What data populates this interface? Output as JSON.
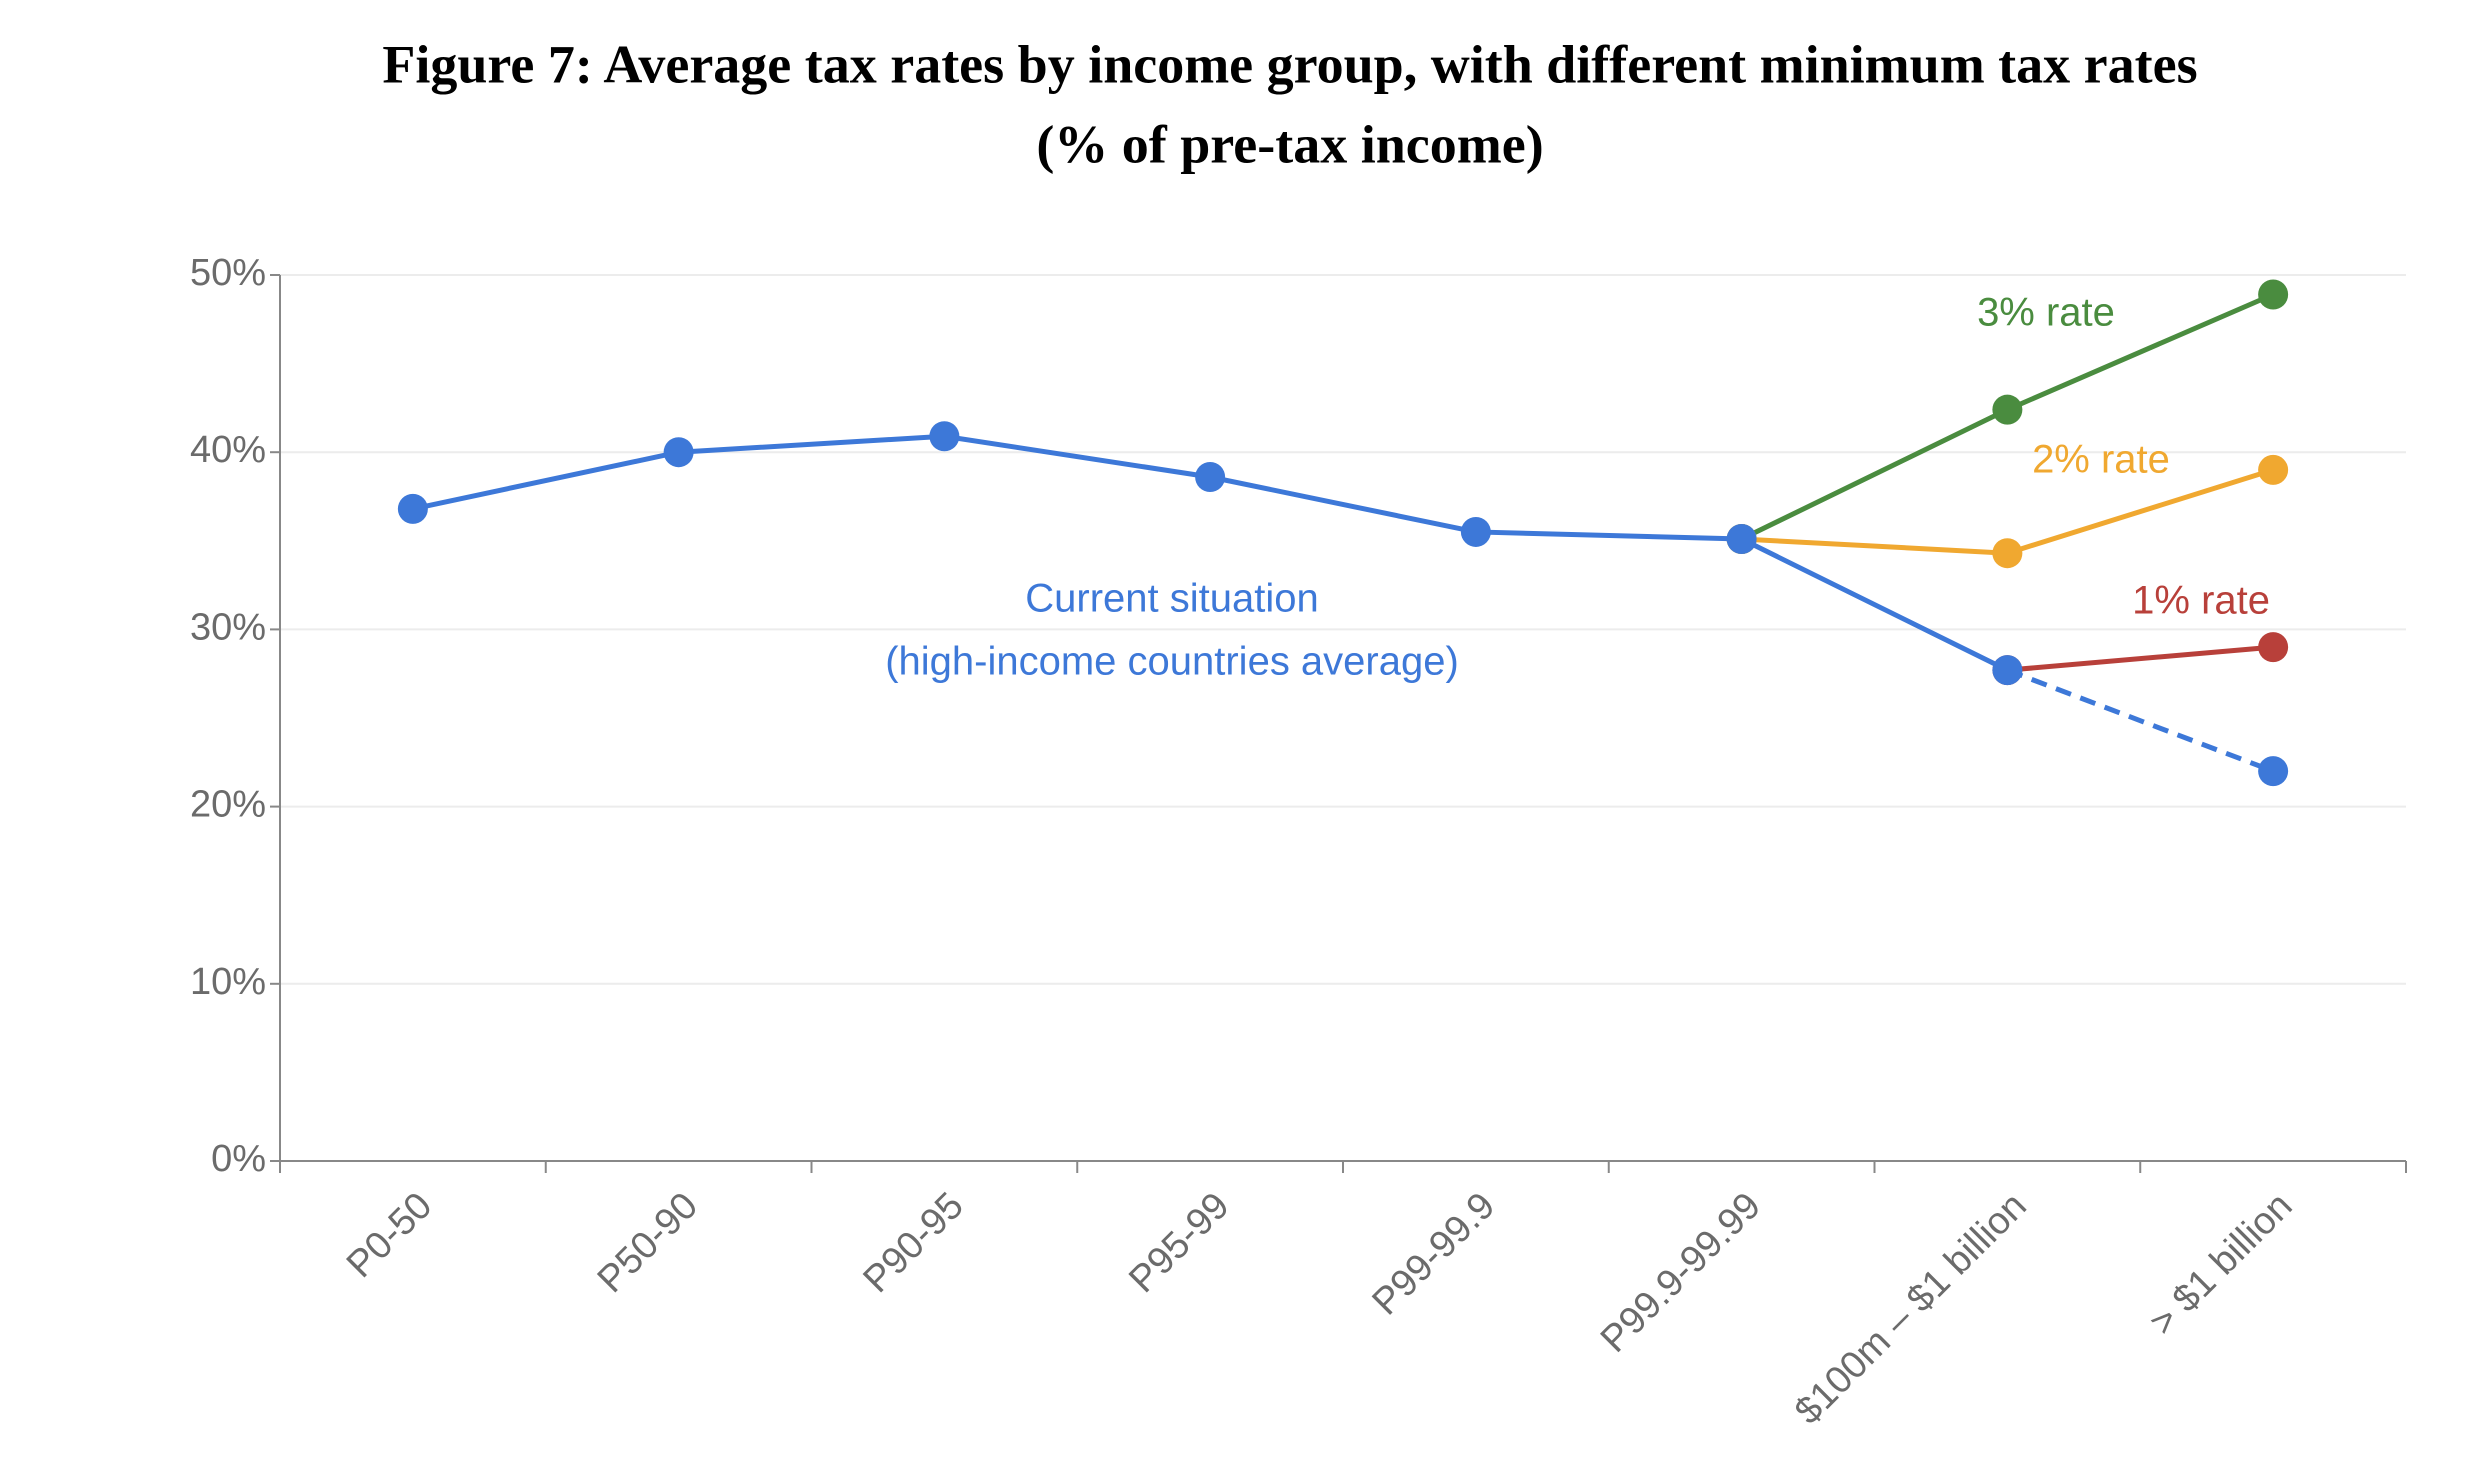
{
  "chart_data": {
    "type": "line",
    "title": "Figure 7: Average tax rates by income group, with different minimum tax rates",
    "subtitle": "(% of pre-tax income)",
    "categories": [
      "P0-50",
      "P50-90",
      "P90-95",
      "P95-99",
      "P99-99.9",
      "P99.9-99.99",
      "$100m – $1 billion",
      "> $1 billion"
    ],
    "ylim": [
      0,
      50
    ],
    "yticks": [
      {
        "value": 0,
        "label": "0%"
      },
      {
        "value": 10,
        "label": "10%"
      },
      {
        "value": 20,
        "label": "20%"
      },
      {
        "value": 30,
        "label": "30%"
      },
      {
        "value": 40,
        "label": "40%"
      },
      {
        "value": 50,
        "label": "50%"
      }
    ],
    "grid": true,
    "series": [
      {
        "name": "3% rate",
        "color": "#4a8c3f",
        "values": [
          null,
          null,
          null,
          null,
          null,
          35.1,
          42.4,
          48.9
        ]
      },
      {
        "name": "2% rate",
        "color": "#f0a830",
        "values": [
          null,
          null,
          null,
          null,
          null,
          35.1,
          34.3,
          39.0
        ]
      },
      {
        "name": "1% rate",
        "color": "#b8403a",
        "values": [
          null,
          null,
          null,
          null,
          null,
          null,
          27.7,
          29.0
        ]
      },
      {
        "name": "Current situation",
        "note": "(high-income countries average)",
        "color": "#3d78d8",
        "dashed_from": 6,
        "values": [
          36.8,
          40.0,
          40.9,
          38.6,
          35.5,
          35.1,
          27.7,
          22.0
        ]
      }
    ]
  }
}
